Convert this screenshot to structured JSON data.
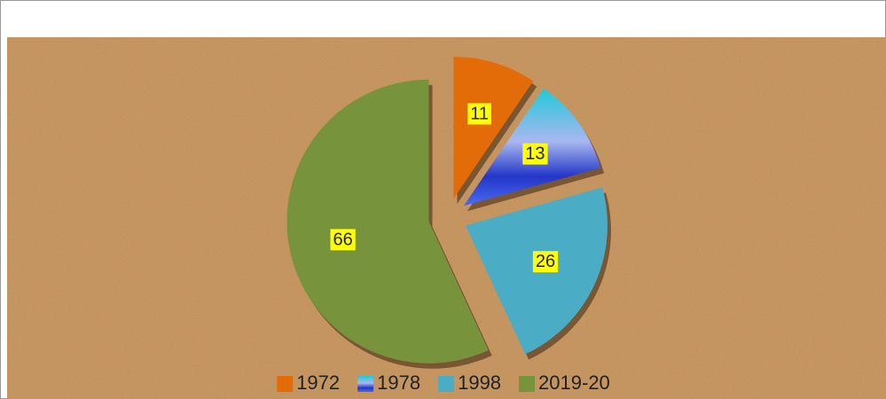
{
  "chart_data": {
    "type": "pie",
    "categories": [
      "1972",
      "1978",
      "1998",
      "2019-20"
    ],
    "values": [
      11,
      13,
      26,
      66
    ],
    "colors": [
      "#e36c09",
      "#3a55d6",
      "#4bacc6",
      "#77933c"
    ],
    "legend": "bottom"
  }
}
